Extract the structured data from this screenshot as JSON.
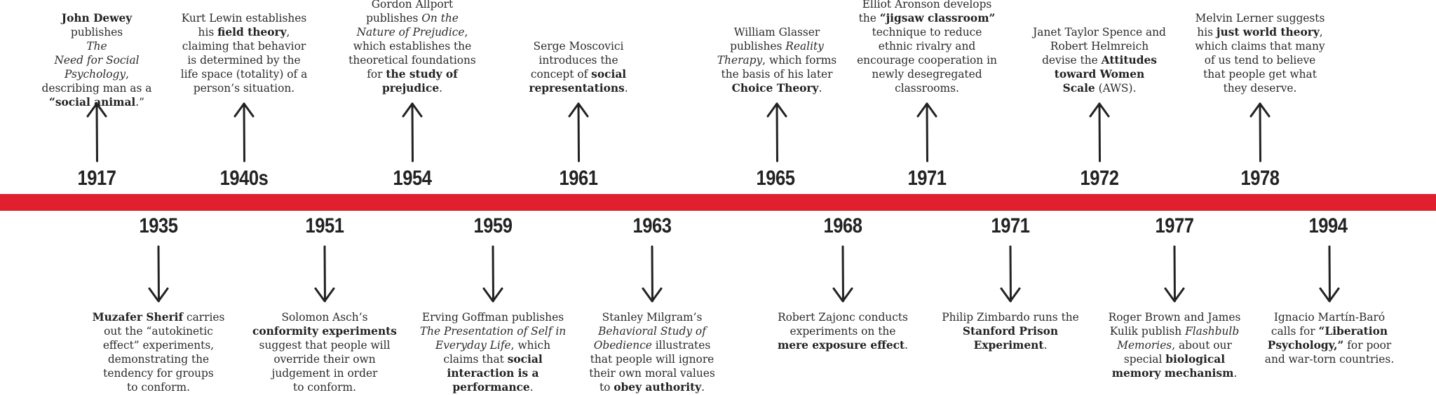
{
  "timeline": {
    "above": [
      {
        "year": "1917",
        "lines": [
          [
            {
              "t": "John Dewey",
              "b": true
            }
          ],
          [
            {
              "t": "publishes"
            }
          ],
          [
            {
              "t": "The",
              "i": true
            }
          ],
          [
            {
              "t": "Need for Social",
              "i": true
            }
          ],
          [
            {
              "t": "Psychology",
              "i": true
            },
            {
              "t": ","
            }
          ],
          [
            {
              "t": "describing man as a"
            }
          ],
          [
            {
              "t": "“social animal",
              "b": true
            },
            {
              "t": ".”"
            }
          ]
        ]
      },
      {
        "year": "1940s",
        "lines": [
          [
            {
              "t": "Kurt Lewin establishes"
            }
          ],
          [
            {
              "t": "his "
            },
            {
              "t": "field theory",
              "b": true
            },
            {
              "t": ","
            }
          ],
          [
            {
              "t": "claiming that behavior"
            }
          ],
          [
            {
              "t": "is determined by the"
            }
          ],
          [
            {
              "t": "life space (totality) of a"
            }
          ],
          [
            {
              "t": "person’s situation."
            }
          ]
        ]
      },
      {
        "year": "1954",
        "lines": [
          [
            {
              "t": "Gordon Allport"
            }
          ],
          [
            {
              "t": "publishes "
            },
            {
              "t": "On the",
              "i": true
            }
          ],
          [
            {
              "t": "Nature of Prejudice",
              "i": true
            },
            {
              "t": ","
            }
          ],
          [
            {
              "t": "which establishes the"
            }
          ],
          [
            {
              "t": "theoretical foundations"
            }
          ],
          [
            {
              "t": "for "
            },
            {
              "t": "the study of",
              "b": true
            }
          ],
          [
            {
              "t": "prejudice",
              "b": true
            },
            {
              "t": "."
            }
          ]
        ]
      },
      {
        "year": "1961",
        "lines": [
          [
            {
              "t": "Serge Moscovici"
            }
          ],
          [
            {
              "t": "introduces the"
            }
          ],
          [
            {
              "t": "concept of "
            },
            {
              "t": "social",
              "b": true
            }
          ],
          [
            {
              "t": "representations",
              "b": true
            },
            {
              "t": "."
            }
          ]
        ]
      },
      {
        "year": "1965",
        "lines": [
          [
            {
              "t": "William Glasser"
            }
          ],
          [
            {
              "t": "publishes "
            },
            {
              "t": "Reality",
              "i": true
            }
          ],
          [
            {
              "t": "Therapy",
              "i": true
            },
            {
              "t": ", which forms"
            }
          ],
          [
            {
              "t": "the basis of his later"
            }
          ],
          [
            {
              "t": "Choice Theory",
              "b": true
            },
            {
              "t": "."
            }
          ]
        ]
      },
      {
        "year": "1971",
        "lines": [
          [
            {
              "t": "Elliot Aronson develops"
            }
          ],
          [
            {
              "t": "the "
            },
            {
              "t": "“jigsaw classroom”",
              "b": true
            }
          ],
          [
            {
              "t": "technique to reduce"
            }
          ],
          [
            {
              "t": "ethnic rivalry and"
            }
          ],
          [
            {
              "t": "encourage cooperation in"
            }
          ],
          [
            {
              "t": "newly desegregated"
            }
          ],
          [
            {
              "t": "classrooms."
            }
          ]
        ]
      },
      {
        "year": "1972",
        "lines": [
          [
            {
              "t": "Janet Taylor Spence and"
            }
          ],
          [
            {
              "t": "Robert Helmreich"
            }
          ],
          [
            {
              "t": "devise the "
            },
            {
              "t": "Attitudes",
              "b": true
            }
          ],
          [
            {
              "t": "toward Women",
              "b": true
            }
          ],
          [
            {
              "t": "Scale",
              "b": true
            },
            {
              "t": " (AWS)."
            }
          ]
        ]
      },
      {
        "year": "1978",
        "lines": [
          [
            {
              "t": "Melvin Lerner suggests"
            }
          ],
          [
            {
              "t": "his "
            },
            {
              "t": "just world theory",
              "b": true
            },
            {
              "t": ","
            }
          ],
          [
            {
              "t": "which claims that many"
            }
          ],
          [
            {
              "t": "of us tend to believe"
            }
          ],
          [
            {
              "t": "that people get what"
            }
          ],
          [
            {
              "t": "they deserve."
            }
          ]
        ]
      }
    ],
    "below": [
      {
        "year": "1935",
        "lines": [
          [
            {
              "t": "Muzafer Sherif",
              "b": true
            },
            {
              "t": " carries"
            }
          ],
          [
            {
              "t": "out the “autokinetic"
            }
          ],
          [
            {
              "t": "effect” experiments,"
            }
          ],
          [
            {
              "t": "demonstrating the"
            }
          ],
          [
            {
              "t": "tendency for groups"
            }
          ],
          [
            {
              "t": "to conform."
            }
          ]
        ]
      },
      {
        "year": "1951",
        "lines": [
          [
            {
              "t": "Solomon Asch’s"
            }
          ],
          [
            {
              "t": "conformity experiments",
              "b": true
            }
          ],
          [
            {
              "t": "suggest that people will"
            }
          ],
          [
            {
              "t": "override their own"
            }
          ],
          [
            {
              "t": "judgement in order"
            }
          ],
          [
            {
              "t": "to conform."
            }
          ]
        ]
      },
      {
        "year": "1959",
        "lines": [
          [
            {
              "t": "Erving Goffman publishes"
            }
          ],
          [
            {
              "t": "The Presentation of Self in",
              "i": true
            }
          ],
          [
            {
              "t": "Everyday Life",
              "i": true
            },
            {
              "t": ", which"
            }
          ],
          [
            {
              "t": "claims that "
            },
            {
              "t": "social",
              "b": true
            }
          ],
          [
            {
              "t": "interaction is a",
              "b": true
            }
          ],
          [
            {
              "t": "performance",
              "b": true
            },
            {
              "t": "."
            }
          ]
        ]
      },
      {
        "year": "1963",
        "lines": [
          [
            {
              "t": "Stanley Milgram’s"
            }
          ],
          [
            {
              "t": "Behavioral Study of",
              "i": true
            }
          ],
          [
            {
              "t": "Obedience",
              "i": true
            },
            {
              "t": " illustrates"
            }
          ],
          [
            {
              "t": "that people will ignore"
            }
          ],
          [
            {
              "t": "their own moral values"
            }
          ],
          [
            {
              "t": "to "
            },
            {
              "t": "obey authority",
              "b": true
            },
            {
              "t": "."
            }
          ]
        ]
      },
      {
        "year": "1968",
        "lines": [
          [
            {
              "t": "Robert Zajonc conducts"
            }
          ],
          [
            {
              "t": "experiments on the"
            }
          ],
          [
            {
              "t": "mere exposure effect",
              "b": true
            },
            {
              "t": "."
            }
          ]
        ]
      },
      {
        "year": "1971",
        "lines": [
          [
            {
              "t": "Philip Zimbardo runs the"
            }
          ],
          [
            {
              "t": "Stanford Prison",
              "b": true
            }
          ],
          [
            {
              "t": "Experiment",
              "b": true
            },
            {
              "t": "."
            }
          ]
        ]
      },
      {
        "year": "1977",
        "lines": [
          [
            {
              "t": "Roger Brown and James"
            }
          ],
          [
            {
              "t": "Kulik publish "
            },
            {
              "t": "Flashbulb",
              "i": true
            }
          ],
          [
            {
              "t": "Memories",
              "i": true
            },
            {
              "t": ", about our"
            }
          ],
          [
            {
              "t": "special "
            },
            {
              "t": "biological",
              "b": true
            }
          ],
          [
            {
              "t": "memory mechanism",
              "b": true
            },
            {
              "t": "."
            }
          ]
        ]
      },
      {
        "year": "1994",
        "lines": [
          [
            {
              "t": "Ignacio Martín-Baró"
            }
          ],
          [
            {
              "t": "calls for "
            },
            {
              "t": "“Liberation",
              "b": true
            }
          ],
          [
            {
              "t": "Psychology,”",
              "b": true
            },
            {
              "t": " for poor"
            }
          ],
          [
            {
              "t": "and war-torn countries."
            }
          ]
        ]
      }
    ]
  },
  "colors": {
    "bar": "#e0202f",
    "text": "#2a2a2a",
    "arrow": "#222222"
  }
}
